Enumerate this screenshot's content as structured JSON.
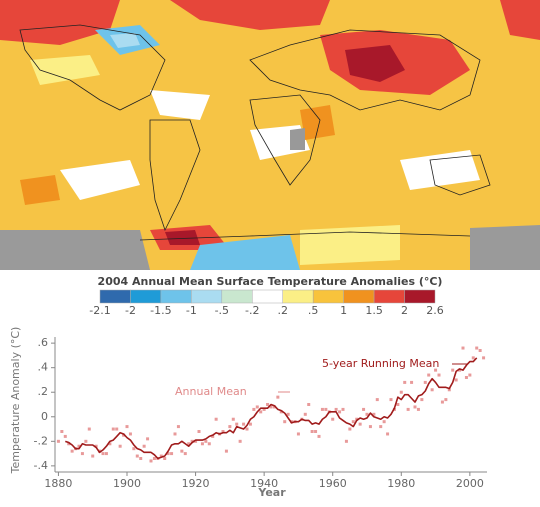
{
  "map": {
    "title": "2004 Annual Mean Surface Temperature Anomalies (°C)",
    "colorbar": {
      "colors": [
        "#2f6aad",
        "#1f9bd7",
        "#6ec3ea",
        "#aadcf1",
        "#c9e7cf",
        "#ffffff",
        "#fbef86",
        "#f8c33c",
        "#f0921f",
        "#e6463a",
        "#a8182a"
      ],
      "ticks": [
        -2.1,
        -2,
        -1.5,
        -1,
        {
          "value": -0.5,
          "label": "-.5"
        },
        {
          "value": -0.2,
          "label": "-.2"
        },
        {
          "value": 0.2,
          "label": ".2"
        },
        {
          "value": 0.5,
          "label": ".5"
        },
        1,
        1.5,
        2,
        2.6
      ]
    }
  },
  "chart_data": {
    "type": "line",
    "x_label": "Year",
    "y_label": "Temperature Anomaly (°C)",
    "xlim": [
      1879,
      2005
    ],
    "ylim": [
      -0.45,
      0.65
    ],
    "xticks": [
      1880,
      1900,
      1920,
      1940,
      1960,
      1980,
      2000
    ],
    "yticks": [
      {
        "value": -0.4,
        "label": "-.4"
      },
      {
        "value": -0.2,
        "label": "-.2"
      },
      0,
      {
        "value": 0.2,
        "label": ".2"
      },
      {
        "value": 0.4,
        "label": ".4"
      },
      {
        "value": 0.6,
        "label": ".6"
      }
    ],
    "x": [
      1880,
      1881,
      1882,
      1883,
      1884,
      1885,
      1886,
      1887,
      1888,
      1889,
      1890,
      1891,
      1892,
      1893,
      1894,
      1895,
      1896,
      1897,
      1898,
      1899,
      1900,
      1901,
      1902,
      1903,
      1904,
      1905,
      1906,
      1907,
      1908,
      1909,
      1910,
      1911,
      1912,
      1913,
      1914,
      1915,
      1916,
      1917,
      1918,
      1919,
      1920,
      1921,
      1922,
      1923,
      1924,
      1925,
      1926,
      1927,
      1928,
      1929,
      1930,
      1931,
      1932,
      1933,
      1934,
      1935,
      1936,
      1937,
      1938,
      1939,
      1940,
      1941,
      1942,
      1943,
      1944,
      1945,
      1946,
      1947,
      1948,
      1949,
      1950,
      1951,
      1952,
      1953,
      1954,
      1955,
      1956,
      1957,
      1958,
      1959,
      1960,
      1961,
      1962,
      1963,
      1964,
      1965,
      1966,
      1967,
      1968,
      1969,
      1970,
      1971,
      1972,
      1973,
      1974,
      1975,
      1976,
      1977,
      1978,
      1979,
      1980,
      1981,
      1982,
      1983,
      1984,
      1985,
      1986,
      1987,
      1988,
      1989,
      1990,
      1991,
      1992,
      1993,
      1994,
      1995,
      1996,
      1997,
      1998,
      1999,
      2000,
      2001,
      2002,
      2003,
      2004
    ],
    "series": [
      {
        "name": "Annual Mean",
        "color": "#e89a9a",
        "marker": "square",
        "values": [
          -0.2,
          -0.12,
          -0.16,
          -0.22,
          -0.28,
          -0.26,
          -0.24,
          -0.3,
          -0.2,
          -0.1,
          -0.32,
          -0.24,
          -0.28,
          -0.3,
          -0.3,
          -0.22,
          -0.1,
          -0.1,
          -0.24,
          -0.15,
          -0.08,
          -0.14,
          -0.26,
          -0.32,
          -0.34,
          -0.24,
          -0.18,
          -0.36,
          -0.34,
          -0.34,
          -0.32,
          -0.34,
          -0.3,
          -0.3,
          -0.14,
          -0.08,
          -0.28,
          -0.3,
          -0.22,
          -0.2,
          -0.2,
          -0.12,
          -0.22,
          -0.2,
          -0.22,
          -0.16,
          -0.02,
          -0.14,
          -0.12,
          -0.28,
          -0.08,
          -0.02,
          -0.06,
          -0.2,
          -0.06,
          -0.1,
          -0.06,
          0.06,
          0.08,
          0.04,
          0.06,
          0.1,
          0.08,
          0.08,
          0.16,
          0.04,
          -0.04,
          0.02,
          -0.04,
          -0.04,
          -0.14,
          -0.02,
          0.02,
          0.1,
          -0.12,
          -0.12,
          -0.16,
          0.06,
          0.06,
          0.04,
          -0.02,
          0.06,
          0.04,
          0.06,
          -0.2,
          -0.1,
          -0.04,
          -0.02,
          -0.06,
          0.06,
          0.02,
          -0.08,
          0.02,
          0.14,
          -0.08,
          -0.04,
          -0.14,
          0.14,
          0.06,
          0.1,
          0.2,
          0.28,
          0.06,
          0.28,
          0.08,
          0.06,
          0.14,
          0.28,
          0.34,
          0.22,
          0.38,
          0.34,
          0.12,
          0.14,
          0.22,
          0.38,
          0.3,
          0.38,
          0.56,
          0.32,
          0.34,
          0.48,
          0.56,
          0.54,
          0.48
        ]
      },
      {
        "name": "5-year Running Mean",
        "color": "#a01c1c",
        "values": [
          null,
          null,
          -0.2,
          -0.21,
          -0.23,
          -0.26,
          -0.26,
          -0.22,
          -0.23,
          -0.23,
          -0.23,
          -0.25,
          -0.29,
          -0.27,
          -0.24,
          -0.2,
          -0.19,
          -0.16,
          -0.13,
          -0.14,
          -0.17,
          -0.19,
          -0.23,
          -0.26,
          -0.27,
          -0.29,
          -0.29,
          -0.29,
          -0.31,
          -0.34,
          -0.33,
          -0.32,
          -0.28,
          -0.23,
          -0.22,
          -0.22,
          -0.2,
          -0.22,
          -0.24,
          -0.21,
          -0.19,
          -0.19,
          -0.19,
          -0.18,
          -0.16,
          -0.15,
          -0.13,
          -0.14,
          -0.13,
          -0.13,
          -0.11,
          -0.13,
          -0.08,
          -0.09,
          -0.1,
          -0.07,
          -0.02,
          0,
          0.04,
          0.07,
          0.07,
          0.07,
          0.1,
          0.09,
          0.06,
          0.05,
          0.03,
          -0.01,
          -0.05,
          -0.04,
          -0.04,
          -0.02,
          -0.03,
          -0.03,
          -0.06,
          -0.05,
          -0.06,
          -0.02,
          0,
          0.04,
          0.04,
          0.04,
          -0.01,
          -0.03,
          -0.05,
          -0.06,
          -0.08,
          -0.03,
          -0.01,
          -0.02,
          -0.01,
          0.03,
          0,
          -0.01,
          -0.02,
          0,
          -0.01,
          0.02,
          0.07,
          0.16,
          0.14,
          0.18,
          0.18,
          0.15,
          0.12,
          0.17,
          0.18,
          0.21,
          0.27,
          0.31,
          0.28,
          0.24,
          0.24,
          0.24,
          0.23,
          0.28,
          0.37,
          0.39,
          0.38,
          0.42,
          0.45,
          0.45,
          0.48,
          null,
          null
        ]
      }
    ]
  }
}
